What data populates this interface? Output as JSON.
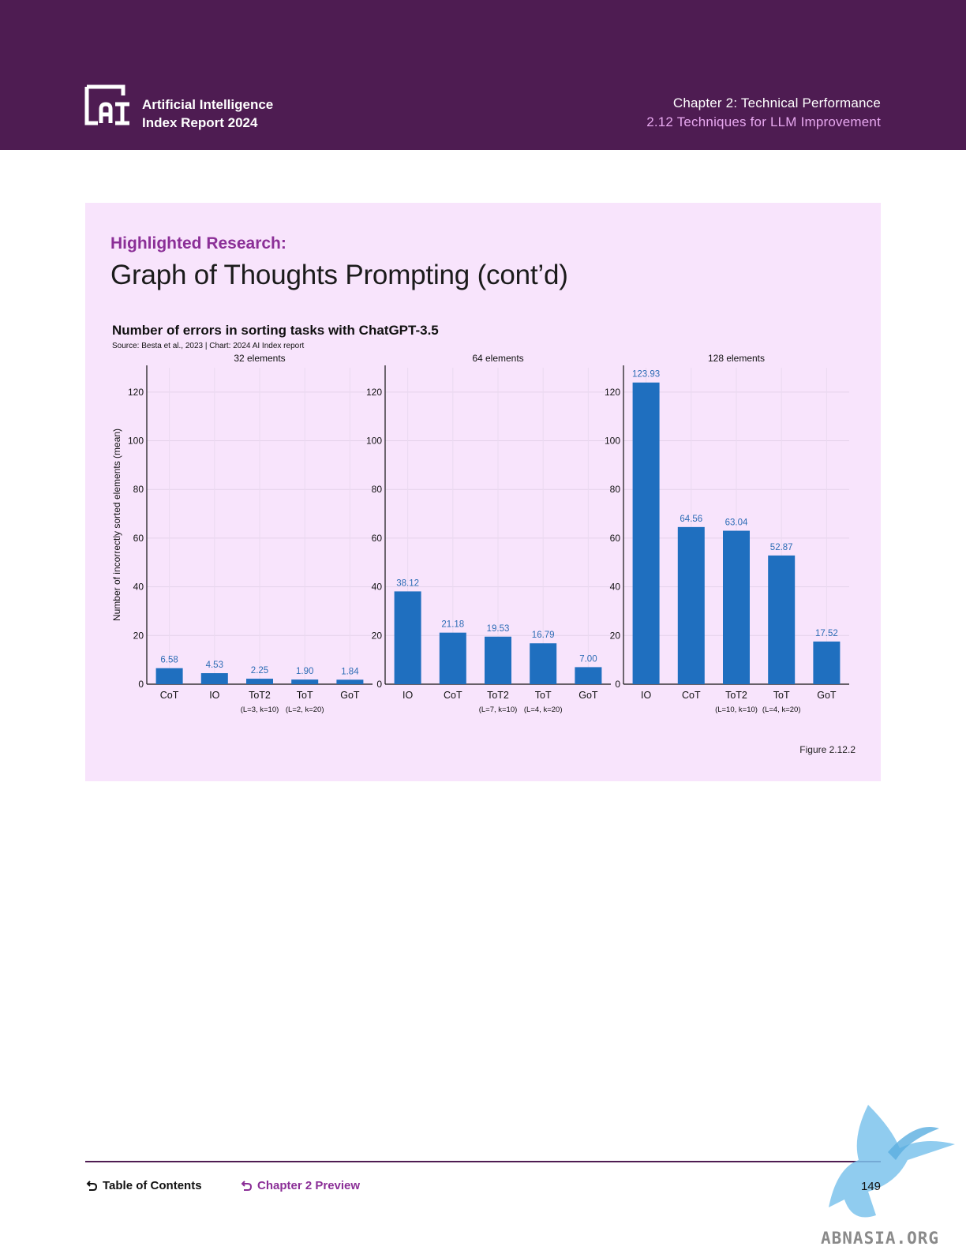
{
  "header": {
    "brand_line1": "Artificial Intelligence",
    "brand_line2": "Index Report 2024",
    "chapter": "Chapter 2: Technical Performance",
    "section": "2.12 Techniques for LLM Improvement"
  },
  "panel": {
    "kicker": "Highlighted Research:",
    "title": "Graph of Thoughts Prompting (cont’d)",
    "figure_label": "Figure 2.12.2"
  },
  "chart_data": {
    "type": "bar",
    "title": "Number of errors in sorting tasks with ChatGPT-3.5",
    "source": "Source: Besta et al., 2023 | Chart: 2024 AI Index report",
    "ylabel": "Number of incorrectly sorted elements (mean)",
    "ylim": [
      0,
      130
    ],
    "yticks": [
      0,
      20,
      40,
      60,
      80,
      100,
      120
    ],
    "bar_color": "#1f6fbf",
    "label_color": "#2c6cb5",
    "panels": [
      {
        "subtitle": "32 elements",
        "categories": [
          "CoT",
          "IO",
          "ToT2",
          "ToT",
          "GoT"
        ],
        "values": [
          6.58,
          4.53,
          2.25,
          1.9,
          1.84
        ],
        "labels": [
          "6.58",
          "4.53",
          "2.25",
          "1.90",
          "1.84"
        ],
        "sublabels": [
          "(L=3, k=10)",
          "(L=2, k=20)"
        ]
      },
      {
        "subtitle": "64 elements",
        "categories": [
          "IO",
          "CoT",
          "ToT2",
          "ToT",
          "GoT"
        ],
        "values": [
          38.12,
          21.18,
          19.53,
          16.79,
          7.0
        ],
        "labels": [
          "38.12",
          "21.18",
          "19.53",
          "16.79",
          "7.00"
        ],
        "sublabels": [
          "(L=7, k=10)",
          "(L=4, k=20)"
        ]
      },
      {
        "subtitle": "128 elements",
        "categories": [
          "IO",
          "CoT",
          "ToT2",
          "ToT",
          "GoT"
        ],
        "values": [
          123.93,
          64.56,
          63.04,
          52.87,
          17.52
        ],
        "labels": [
          "123.93",
          "64.56",
          "63.04",
          "52.87",
          "17.52"
        ],
        "sublabels": [
          "(L=10, k=10)",
          "(L=4, k=20)"
        ]
      }
    ]
  },
  "footer": {
    "toc": "Table of Contents",
    "preview": "Chapter 2 Preview",
    "page": "149"
  },
  "watermark": {
    "text": "ABNASIA.ORG"
  }
}
